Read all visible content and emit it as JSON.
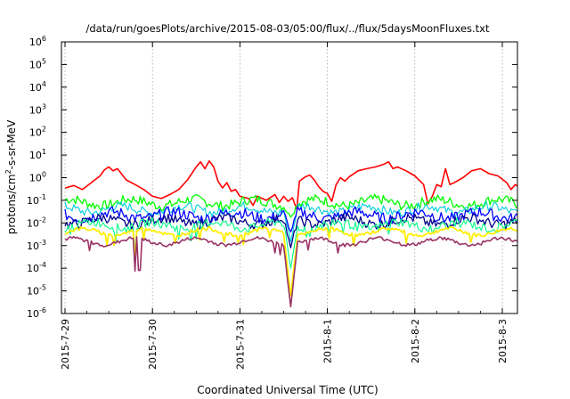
{
  "chart_data": {
    "type": "line",
    "title": "/data/run/goesPlots/archive/2015-08-03/05:00/flux/../flux/5daysMoonFluxes.txt",
    "xlabel": "Coordinated Universal Time (UTC)",
    "ylabel_parts": [
      "protons/cm",
      "2",
      "-s-sr-MeV"
    ],
    "y_scale": "log",
    "ylim": [
      1e-06,
      1000000.0
    ],
    "y_ticks": [
      {
        "mantissa": "10",
        "exponent": "-6",
        "value": 1e-06
      },
      {
        "mantissa": "10",
        "exponent": "-5",
        "value": 1e-05
      },
      {
        "mantissa": "10",
        "exponent": "-4",
        "value": 0.0001
      },
      {
        "mantissa": "10",
        "exponent": "-3",
        "value": 0.001
      },
      {
        "mantissa": "10",
        "exponent": "-2",
        "value": 0.01
      },
      {
        "mantissa": "10",
        "exponent": "-1",
        "value": 0.1
      },
      {
        "mantissa": "10",
        "exponent": "0",
        "value": 1
      },
      {
        "mantissa": "10",
        "exponent": "1",
        "value": 10
      },
      {
        "mantissa": "10",
        "exponent": "2",
        "value": 100
      },
      {
        "mantissa": "10",
        "exponent": "3",
        "value": 1000
      },
      {
        "mantissa": "10",
        "exponent": "4",
        "value": 10000
      },
      {
        "mantissa": "10",
        "exponent": "5",
        "value": 100000
      },
      {
        "mantissa": "10",
        "exponent": "6",
        "value": 1000000
      }
    ],
    "x_ticks": [
      "2015-7-29",
      "2015-7-30",
      "2015-7-31",
      "2015-8-1",
      "2015-8-2",
      "2015-8-3"
    ],
    "x_range_days": [
      0,
      5.25
    ],
    "grid": {
      "vertical": true,
      "horizontal": false
    },
    "series": [
      {
        "color": "#ff0000",
        "width": 1.6,
        "points": [
          [
            0,
            0.35
          ],
          [
            0.1,
            0.45
          ],
          [
            0.2,
            0.3
          ],
          [
            0.3,
            0.6
          ],
          [
            0.4,
            1.2
          ],
          [
            0.45,
            2.2
          ],
          [
            0.5,
            3.0
          ],
          [
            0.55,
            2.0
          ],
          [
            0.6,
            2.5
          ],
          [
            0.7,
            0.8
          ],
          [
            0.8,
            0.5
          ],
          [
            0.9,
            0.3
          ],
          [
            1.0,
            0.15
          ],
          [
            1.1,
            0.12
          ],
          [
            1.2,
            0.18
          ],
          [
            1.3,
            0.3
          ],
          [
            1.4,
            0.8
          ],
          [
            1.5,
            3.0
          ],
          [
            1.55,
            5.0
          ],
          [
            1.6,
            2.5
          ],
          [
            1.65,
            5.5
          ],
          [
            1.7,
            3.0
          ],
          [
            1.75,
            0.7
          ],
          [
            1.8,
            0.35
          ],
          [
            1.85,
            0.6
          ],
          [
            1.9,
            0.25
          ],
          [
            1.95,
            0.3
          ],
          [
            2.0,
            0.15
          ],
          [
            2.1,
            0.12
          ],
          [
            2.15,
            0.06
          ],
          [
            2.2,
            0.15
          ],
          [
            2.3,
            0.1
          ],
          [
            2.4,
            0.18
          ],
          [
            2.45,
            0.08
          ],
          [
            2.5,
            0.15
          ],
          [
            2.55,
            0.09
          ],
          [
            2.6,
            0.13
          ],
          [
            2.65,
            0.04
          ],
          [
            2.68,
            0.7
          ],
          [
            2.75,
            1.1
          ],
          [
            2.8,
            1.3
          ],
          [
            2.85,
            0.8
          ],
          [
            2.9,
            0.4
          ],
          [
            2.95,
            0.25
          ],
          [
            3.0,
            0.2
          ],
          [
            3.05,
            0.09
          ],
          [
            3.1,
            0.5
          ],
          [
            3.15,
            1.0
          ],
          [
            3.2,
            0.7
          ],
          [
            3.25,
            1.1
          ],
          [
            3.35,
            2.0
          ],
          [
            3.45,
            2.5
          ],
          [
            3.55,
            3.0
          ],
          [
            3.65,
            4.0
          ],
          [
            3.7,
            5.0
          ],
          [
            3.75,
            2.5
          ],
          [
            3.8,
            3.0
          ],
          [
            3.9,
            2.0
          ],
          [
            4.0,
            1.2
          ],
          [
            4.1,
            0.5
          ],
          [
            4.15,
            0.07
          ],
          [
            4.2,
            0.15
          ],
          [
            4.25,
            0.5
          ],
          [
            4.3,
            0.4
          ],
          [
            4.35,
            2.5
          ],
          [
            4.4,
            0.5
          ],
          [
            4.45,
            0.6
          ],
          [
            4.55,
            1.0
          ],
          [
            4.65,
            2.0
          ],
          [
            4.75,
            2.5
          ],
          [
            4.85,
            1.5
          ],
          [
            4.95,
            1.2
          ],
          [
            5.05,
            0.6
          ],
          [
            5.1,
            0.3
          ],
          [
            5.15,
            0.5
          ],
          [
            5.2,
            0.35
          ],
          [
            5.25,
            0.3
          ]
        ]
      },
      {
        "color": "#00ff00",
        "width": 1.3,
        "base": 0.08,
        "amp": 0.22,
        "dip": 0.018
      },
      {
        "color": "#00ccdd",
        "width": 1.1,
        "base": 0.04,
        "amp": 0.2,
        "dip": 0.0015
      },
      {
        "color": "#0000ff",
        "width": 1.3,
        "base": 0.022,
        "amp": 0.25,
        "dip": 0.004
      },
      {
        "color": "#000088",
        "width": 1.3,
        "base": 0.012,
        "amp": 0.22,
        "dip": 0.0008
      },
      {
        "color": "#00ff88",
        "width": 1.1,
        "base": 0.008,
        "amp": 0.2,
        "dip": 0.0001
      },
      {
        "color": "#ffee00",
        "width": 1.8,
        "base": 0.004,
        "amp": 0.08,
        "dip": 6e-06
      },
      {
        "color": "#993366",
        "width": 1.6,
        "base": 0.0015,
        "amp": 0.08,
        "dip": 2e-06
      }
    ]
  }
}
